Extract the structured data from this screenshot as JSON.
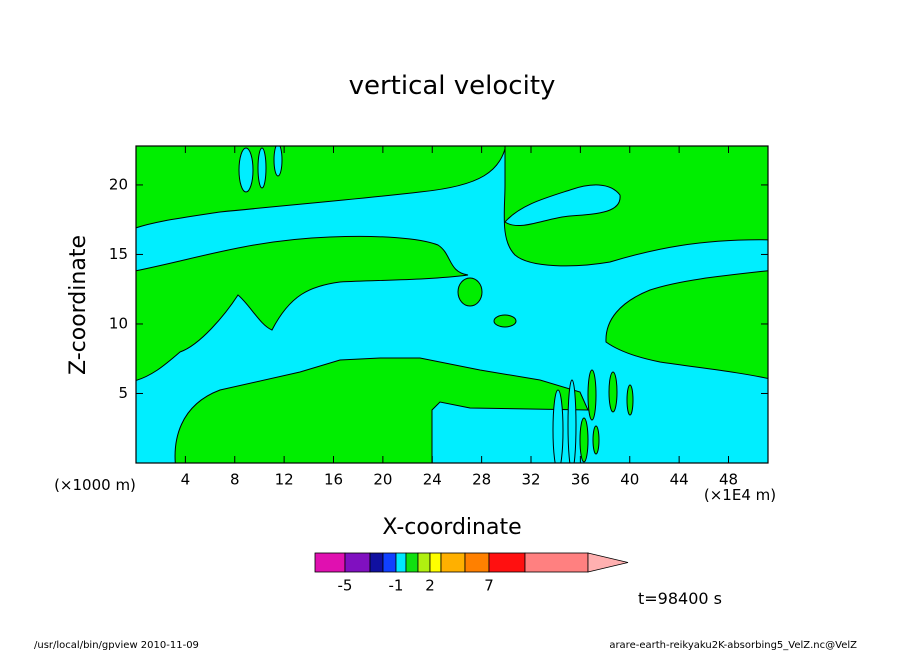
{
  "chart_data": {
    "type": "contour",
    "title": "vertical velocity",
    "x_label": "X-coordinate",
    "y_label": "Z-coordinate",
    "x_unit_left": "(×1000 m)",
    "x_unit_right": "(×1E4 m)",
    "xlim": [
      0,
      51.2
    ],
    "ylim": [
      0,
      22.8
    ],
    "xticks": [
      4,
      8,
      12,
      16,
      20,
      24,
      28,
      32,
      36,
      40,
      44,
      48
    ],
    "yticks": [
      5,
      10,
      15,
      20
    ],
    "colorbar": {
      "colors": [
        "#e010b0",
        "#8010c0",
        "#1010a0",
        "#1040ff",
        "#00e8ff",
        "#10e010",
        "#b0f010",
        "#ffff00",
        "#ffb000",
        "#ff8000",
        "#ff1010",
        "#ff8080"
      ],
      "extend_color": "#ffb0b0",
      "ticks": [
        -5,
        -1,
        2,
        7
      ]
    },
    "field_colors": {
      "low": "#00eeff",
      "high": "#00ee00"
    },
    "annotation": "t=98400 s",
    "footer_left": "/usr/local/bin/gpview   2010-11-09",
    "footer_right": "arare-earth-reikyaku2K-absorbing5_VelZ.nc@VelZ"
  }
}
